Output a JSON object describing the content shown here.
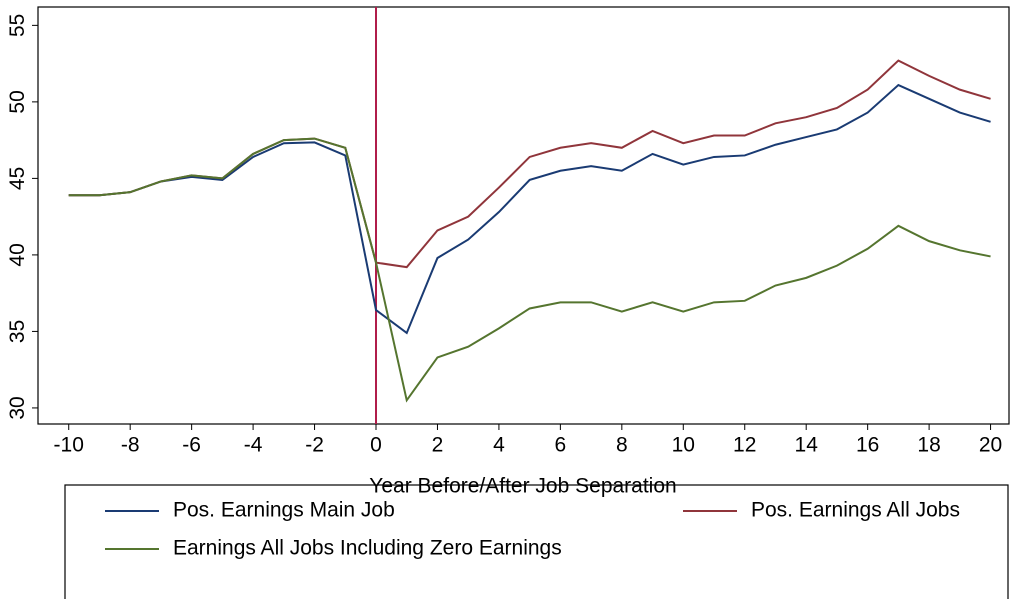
{
  "chart_data": {
    "type": "line",
    "xlabel": "Year Before/After Job Separation",
    "x": [
      -10,
      -9,
      -8,
      -7,
      -6,
      -5,
      -4,
      -3,
      -2,
      -1,
      0,
      1,
      2,
      3,
      4,
      5,
      6,
      7,
      8,
      9,
      10,
      11,
      12,
      13,
      14,
      15,
      16,
      17,
      18,
      19,
      20
    ],
    "series": [
      {
        "name": "Pos. Earnings Main Job",
        "color": "#1a3b73",
        "values": [
          43.9,
          43.9,
          44.1,
          44.8,
          45.1,
          44.9,
          46.4,
          47.3,
          47.35,
          46.5,
          36.4,
          34.9,
          39.8,
          41.0,
          42.8,
          44.9,
          45.5,
          45.8,
          45.5,
          46.6,
          45.9,
          46.4,
          46.5,
          47.2,
          47.7,
          48.2,
          49.3,
          51.1,
          50.2,
          49.3,
          48.7
        ]
      },
      {
        "name": "Pos. Earnings All Jobs",
        "color": "#90353b",
        "values": [
          43.9,
          43.9,
          44.1,
          44.8,
          45.2,
          45.0,
          46.6,
          47.5,
          47.6,
          47.0,
          39.5,
          39.2,
          41.6,
          42.5,
          44.4,
          46.4,
          47.0,
          47.3,
          47.0,
          48.1,
          47.3,
          47.8,
          47.8,
          48.6,
          49.0,
          49.6,
          50.8,
          52.7,
          51.7,
          50.8,
          50.2
        ]
      },
      {
        "name": "Earnings All Jobs Including Zero Earnings",
        "color": "#55752f",
        "values": [
          43.9,
          43.9,
          44.1,
          44.8,
          45.2,
          45.0,
          46.6,
          47.5,
          47.6,
          47.0,
          39.5,
          30.5,
          33.3,
          34.0,
          35.2,
          36.5,
          36.9,
          36.9,
          36.3,
          36.9,
          36.3,
          36.9,
          37.0,
          38.0,
          38.5,
          39.3,
          40.4,
          41.9,
          40.9,
          40.3,
          39.9
        ]
      }
    ],
    "xlim": [
      -11,
      20.6
    ],
    "xticks": [
      -10,
      -8,
      -6,
      -4,
      -2,
      0,
      2,
      4,
      6,
      8,
      10,
      12,
      14,
      16,
      18,
      20
    ],
    "ylim": [
      28.95,
      56.2
    ],
    "yticks": [
      30,
      35,
      40,
      45,
      50,
      55
    ],
    "vline": 0,
    "vline_color": "#b01c4a"
  }
}
